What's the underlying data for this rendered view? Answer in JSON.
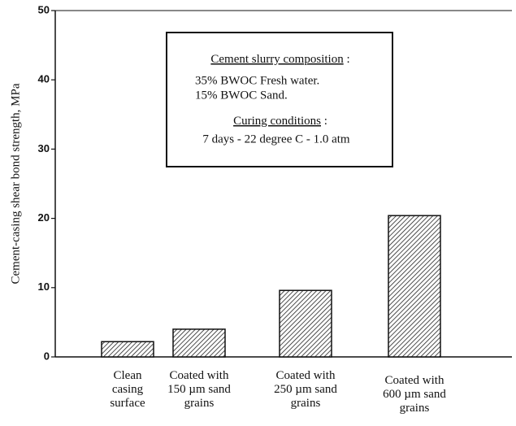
{
  "chart_data": {
    "type": "bar",
    "y_label": "Cement-casing shear bond strength,  MPa",
    "categories": [
      [
        "Clean",
        "casing",
        "surface"
      ],
      [
        "Coated with",
        "150 µm sand",
        "grains"
      ],
      [
        "Coated with",
        "250 µm sand",
        "grains"
      ],
      [
        "Coated with",
        "600 µm sand",
        "grains"
      ]
    ],
    "values": [
      2.2,
      4.0,
      9.6,
      20.4
    ],
    "color": "#222",
    "ylim": [
      0,
      50
    ],
    "yticks": [
      0,
      10,
      20,
      30,
      40,
      50
    ],
    "annotation": {
      "heading1": "Cement slurry composition",
      "colon1": " :",
      "line1": "35% BWOC  Fresh water.",
      "line2": "15% BWOC  Sand.",
      "heading2": "Curing conditions",
      "colon2": " :",
      "line3": "7 days - 22 degree C - 1.0 atm"
    }
  }
}
